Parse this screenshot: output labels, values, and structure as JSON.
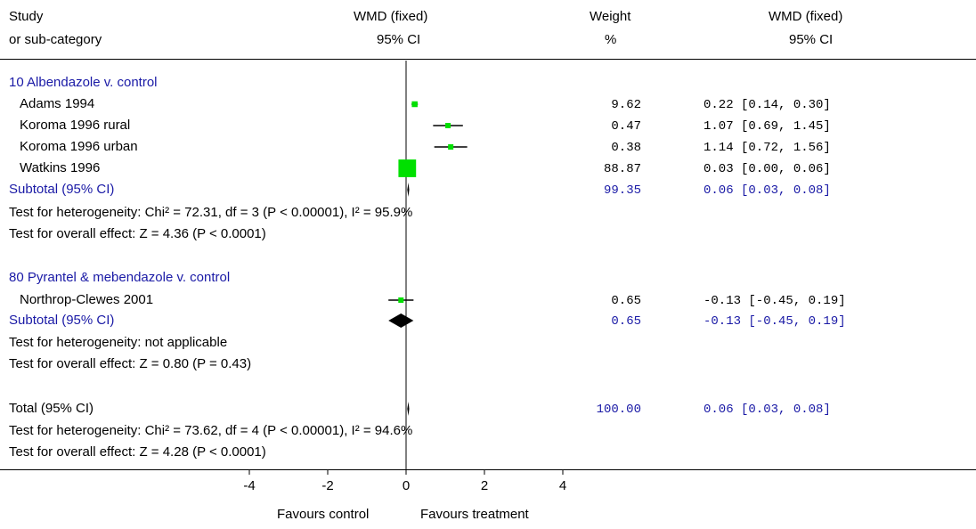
{
  "header": {
    "col1_line1": "Study",
    "col1_line2": "or sub-category",
    "col2_line1": "WMD (fixed)",
    "col2_line2": "95% CI",
    "col3_line1": "Weight",
    "col3_line2": "%",
    "col4_line1": "WMD (fixed)",
    "col4_line2": "95% CI"
  },
  "groups": [
    {
      "title": "10 Albendazole v. control",
      "studies": [
        {
          "label": "Adams 1994",
          "weight": "9.62",
          "ci_text": "0.22 [0.14, 0.30]"
        },
        {
          "label": "Koroma 1996 rural",
          "weight": "0.47",
          "ci_text": "1.07 [0.69, 1.45]"
        },
        {
          "label": "Koroma 1996 urban",
          "weight": "0.38",
          "ci_text": "1.14 [0.72, 1.56]"
        },
        {
          "label": "Watkins 1996",
          "weight": "88.87",
          "ci_text": "0.03 [0.00, 0.06]"
        }
      ],
      "subtotal": {
        "label": "Subtotal (95% CI)",
        "weight": "99.35",
        "ci_text": "0.06 [0.03, 0.08]"
      },
      "heterogeneity": "Test for heterogeneity: Chi² = 72.31, df = 3 (P < 0.00001), I² = 95.9%",
      "overall": "Test for overall effect: Z = 4.36 (P < 0.0001)"
    },
    {
      "title": "80 Pyrantel & mebendazole v. control",
      "studies": [
        {
          "label": "Northrop-Clewes 2001",
          "weight": "0.65",
          "ci_text": "-0.13 [-0.45, 0.19]"
        }
      ],
      "subtotal": {
        "label": "Subtotal (95% CI)",
        "weight": "0.65",
        "ci_text": "-0.13 [-0.45, 0.19]"
      },
      "heterogeneity": "Test for heterogeneity: not applicable",
      "overall": "Test for overall effect: Z = 0.80 (P = 0.43)"
    }
  ],
  "total": {
    "label": "Total (95% CI)",
    "weight": "100.00",
    "ci_text": "0.06 [0.03, 0.08]",
    "heterogeneity": "Test for heterogeneity: Chi² = 73.62, df = 4 (P < 0.00001), I² = 94.6%",
    "overall": "Test for overall effect: Z = 4.28 (P < 0.0001)"
  },
  "footer": {
    "favours_left": "Favours control",
    "favours_right": "Favours treatment"
  },
  "colors": {
    "study_marker": "#00e000",
    "diamond": "#000000",
    "summary_text": "#1a1aa6"
  },
  "chart_data": {
    "type": "forest",
    "x_range": [
      -4,
      4
    ],
    "x_ticks": [
      -4,
      -2,
      0,
      2,
      4
    ],
    "null_line": 0,
    "studies": [
      {
        "group": 0,
        "name": "Adams 1994",
        "estimate": 0.22,
        "lower": 0.14,
        "upper": 0.3,
        "weight": 9.62
      },
      {
        "group": 0,
        "name": "Koroma 1996 rural",
        "estimate": 1.07,
        "lower": 0.69,
        "upper": 1.45,
        "weight": 0.47
      },
      {
        "group": 0,
        "name": "Koroma 1996 urban",
        "estimate": 1.14,
        "lower": 0.72,
        "upper": 1.56,
        "weight": 0.38
      },
      {
        "group": 0,
        "name": "Watkins 1996",
        "estimate": 0.03,
        "lower": 0.0,
        "upper": 0.06,
        "weight": 88.87
      },
      {
        "group": 1,
        "name": "Northrop-Clewes 2001",
        "estimate": -0.13,
        "lower": -0.45,
        "upper": 0.19,
        "weight": 0.65
      }
    ],
    "subtotals": [
      {
        "group": 0,
        "estimate": 0.06,
        "lower": 0.03,
        "upper": 0.08,
        "weight": 99.35
      },
      {
        "group": 1,
        "estimate": -0.13,
        "lower": -0.45,
        "upper": 0.19,
        "weight": 0.65
      }
    ],
    "total": {
      "estimate": 0.06,
      "lower": 0.03,
      "upper": 0.08,
      "weight": 100.0
    }
  }
}
